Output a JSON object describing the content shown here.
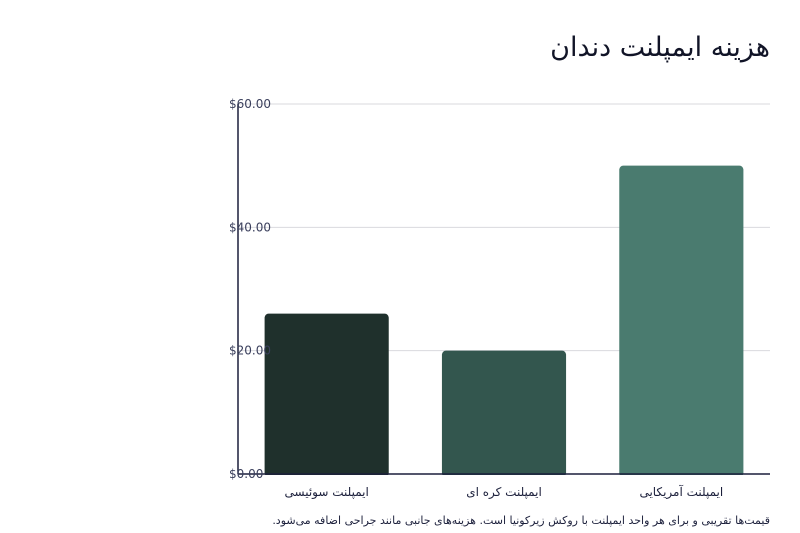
{
  "chart_data": {
    "type": "bar",
    "title": "هزینه ایمپلنت دندان",
    "categories": [
      "ایمپلنت سوئیسی",
      "ایمپلنت کره ای",
      "ایمپلنت آمریکایی"
    ],
    "values": [
      26,
      20,
      50
    ],
    "colors": [
      "#1f302c",
      "#33564e",
      "#4a7b6f"
    ],
    "ylim": [
      0,
      60
    ],
    "yticks": [
      0,
      20,
      40,
      60
    ],
    "ytick_labels": [
      "$0.00",
      "$20.00",
      "$40.00",
      "$60.00"
    ],
    "grid": true,
    "legend": "none"
  },
  "footnote": "قیمت‌ها تقریبی و برای هر واحد ایمپلنت با روکش زیرکونیا است. هزینه‌های جانبی مانند جراحی اضافه می‌شود."
}
